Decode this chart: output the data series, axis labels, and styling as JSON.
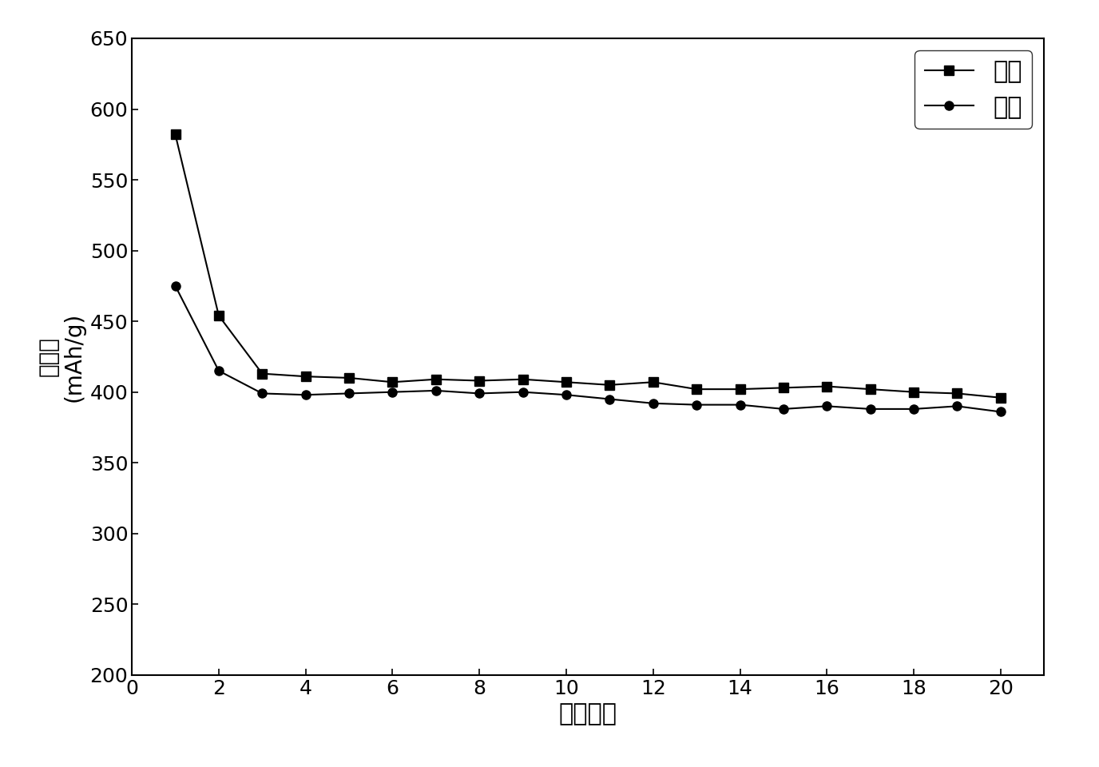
{
  "charge_x": [
    1,
    2,
    3,
    4,
    5,
    6,
    7,
    8,
    9,
    10,
    11,
    12,
    13,
    14,
    15,
    16,
    17,
    18,
    19,
    20
  ],
  "charge_y": [
    582,
    454,
    413,
    411,
    410,
    407,
    409,
    408,
    409,
    407,
    405,
    407,
    402,
    402,
    403,
    404,
    402,
    400,
    399,
    396
  ],
  "discharge_x": [
    1,
    2,
    3,
    4,
    5,
    6,
    7,
    8,
    9,
    10,
    11,
    12,
    13,
    14,
    15,
    16,
    17,
    18,
    19,
    20
  ],
  "discharge_y": [
    475,
    415,
    399,
    398,
    399,
    400,
    401,
    399,
    400,
    398,
    395,
    392,
    391,
    391,
    388,
    390,
    388,
    388,
    390,
    386
  ],
  "xlabel": "循环次数",
  "ylabel_top": "比容量",
  "ylabel_bottom": "(mAh/g)",
  "legend_charge": "充电",
  "legend_discharge": "放电",
  "xlim": [
    0,
    21
  ],
  "ylim": [
    200,
    650
  ],
  "xticks": [
    0,
    2,
    4,
    6,
    8,
    10,
    12,
    14,
    16,
    18,
    20
  ],
  "yticks": [
    200,
    250,
    300,
    350,
    400,
    450,
    500,
    550,
    600,
    650
  ],
  "line_color": "#000000",
  "marker_square": "s",
  "marker_circle": "o",
  "marker_size": 8,
  "linewidth": 1.5,
  "xlabel_fontsize": 22,
  "ylabel_fontsize": 20,
  "tick_fontsize": 18,
  "legend_fontsize": 22,
  "background_color": "#ffffff"
}
